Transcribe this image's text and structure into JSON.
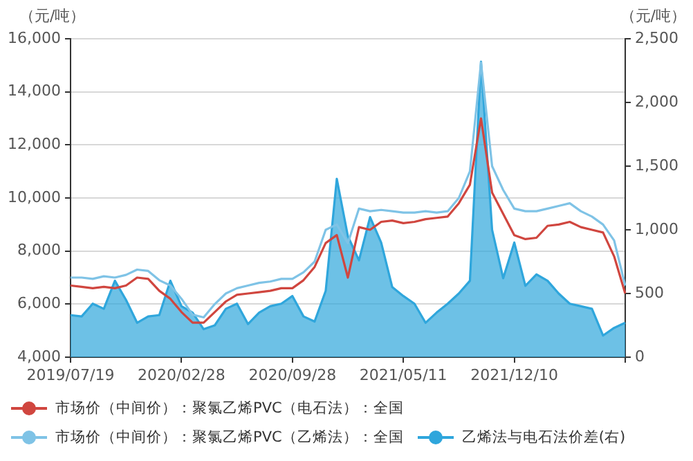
{
  "chart_data": {
    "type": "line",
    "ylabel": "（元/吨）",
    "y2label": "（元/吨）",
    "categories": [
      "2019/07/19",
      null,
      null,
      null,
      null,
      null,
      null,
      null,
      null,
      null,
      "2020/02/28",
      null,
      null,
      null,
      null,
      null,
      null,
      null,
      null,
      null,
      "2020/09/28",
      null,
      null,
      null,
      null,
      null,
      null,
      null,
      null,
      null,
      "2021/05/11",
      null,
      null,
      null,
      null,
      null,
      null,
      null,
      null,
      null,
      "2021/12/10",
      null,
      null,
      null,
      null,
      null,
      null,
      null,
      null,
      null,
      null
    ],
    "ylim": [
      4000,
      16000
    ],
    "yticks": [
      {
        "value": 4000,
        "label": "4,000"
      },
      {
        "value": 6000,
        "label": "6,000"
      },
      {
        "value": 8000,
        "label": "8,000"
      },
      {
        "value": 10000,
        "label": "10,000"
      },
      {
        "value": 12000,
        "label": "12,000"
      },
      {
        "value": 14000,
        "label": "14,000"
      },
      {
        "value": 16000,
        "label": "16,000"
      }
    ],
    "y2lim": [
      0,
      2500
    ],
    "y2ticks": [
      0,
      500,
      {
        "value": 1000,
        "label": "1,000"
      },
      {
        "value": 1500,
        "label": "1,500"
      },
      {
        "value": 2000,
        "label": "2,000"
      },
      {
        "value": 2500,
        "label": "2,500"
      }
    ],
    "grid": "y",
    "legend": "bottom",
    "marker": "none",
    "line_style": "solid",
    "series": [
      {
        "name": "市场价（中间价）：聚氯乙烯PVC（电石法）：全国",
        "color": "#d0463f",
        "values": [
          6700,
          6650,
          6600,
          6650,
          6600,
          6700,
          7000,
          6950,
          6500,
          6200,
          5700,
          5300,
          5300,
          5700,
          6100,
          6350,
          6400,
          6450,
          6500,
          6600,
          6600,
          6900,
          7400,
          8300,
          8600,
          7000,
          8900,
          8800,
          9100,
          9150,
          9050,
          9100,
          9200,
          9250,
          9300,
          9800,
          10500,
          13000,
          10200,
          9400,
          8600,
          8450,
          8500,
          8950,
          9000,
          9100,
          8900,
          8800,
          8700,
          7800,
          6400
        ]
      },
      {
        "name": "市场价（中间价）：聚氯乙烯PVC（乙烯法）：全国",
        "color": "#7fc3e6",
        "values": [
          7000,
          7000,
          6950,
          7050,
          7000,
          7100,
          7300,
          7250,
          6900,
          6700,
          6200,
          5600,
          5500,
          6000,
          6400,
          6600,
          6700,
          6800,
          6850,
          6950,
          6950,
          7200,
          7600,
          8800,
          9000,
          8300,
          9600,
          9500,
          9550,
          9500,
          9450,
          9450,
          9500,
          9450,
          9500,
          10000,
          11000,
          15100,
          11200,
          10300,
          9600,
          9500,
          9500,
          9600,
          9700,
          9800,
          9500,
          9300,
          9000,
          8400,
          6700
        ]
      },
      {
        "name": "乙烯法与电石法价差(右)",
        "type": "area",
        "axis": "y2",
        "color": "#2fa6dc",
        "values": [
          330,
          320,
          420,
          380,
          600,
          450,
          270,
          320,
          330,
          600,
          400,
          350,
          220,
          250,
          380,
          420,
          260,
          350,
          400,
          420,
          480,
          320,
          280,
          520,
          1400,
          950,
          760,
          1100,
          900,
          550,
          480,
          420,
          270,
          350,
          420,
          500,
          600,
          2320,
          1000,
          620,
          900,
          560,
          650,
          600,
          500,
          420,
          400,
          380,
          170,
          230,
          270
        ]
      }
    ]
  }
}
